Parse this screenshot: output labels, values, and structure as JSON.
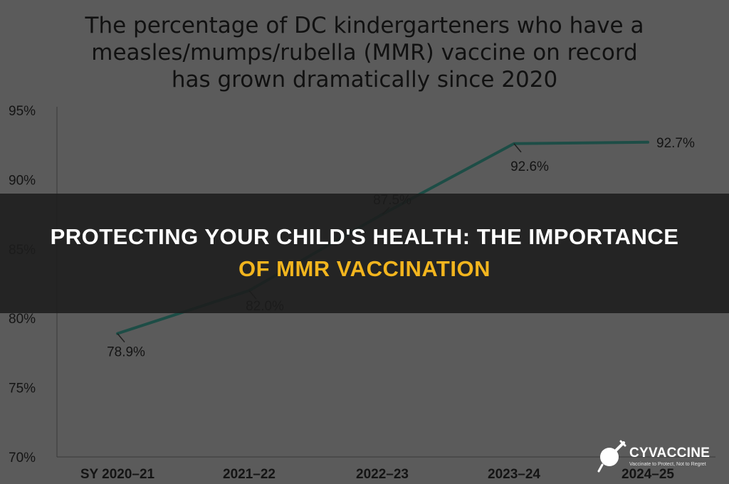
{
  "chart_data": {
    "type": "line",
    "title_lines": [
      "The percentage of DC kindergarteners who have a",
      "measles/mumps/rubella (MMR) vaccine on record",
      "has grown dramatically since 2020"
    ],
    "categories": [
      "SY 2020–21",
      "2021–22",
      "2022–23",
      "2023–24",
      "2024–25"
    ],
    "series": [
      {
        "values": [
          78.9,
          82.0,
          87.5,
          92.6,
          92.7
        ]
      }
    ],
    "data_labels": [
      "78.9%",
      "82.0%",
      "87.5%",
      "92.6%",
      "92.7%"
    ],
    "y_ticks": [
      70,
      75,
      80,
      85,
      90,
      95
    ],
    "y_tick_labels": [
      "70%",
      "75%",
      "80%",
      "85%",
      "90%",
      "95%"
    ],
    "ylim": [
      70,
      95
    ],
    "line_color": "#1d4d46",
    "grid": false
  },
  "banner": {
    "line1": "PROTECTING YOUR CHILD'S HEALTH: THE IMPORTANCE",
    "line2": "OF MMR VACCINATION",
    "line1_color": "#ffffff",
    "line2_color": "#f2b51e"
  },
  "logo": {
    "name": "CYVACCINE",
    "tagline": "Vaccinate to Protect, Not to Regret",
    "icon": "vaccine-syringe-icon"
  }
}
